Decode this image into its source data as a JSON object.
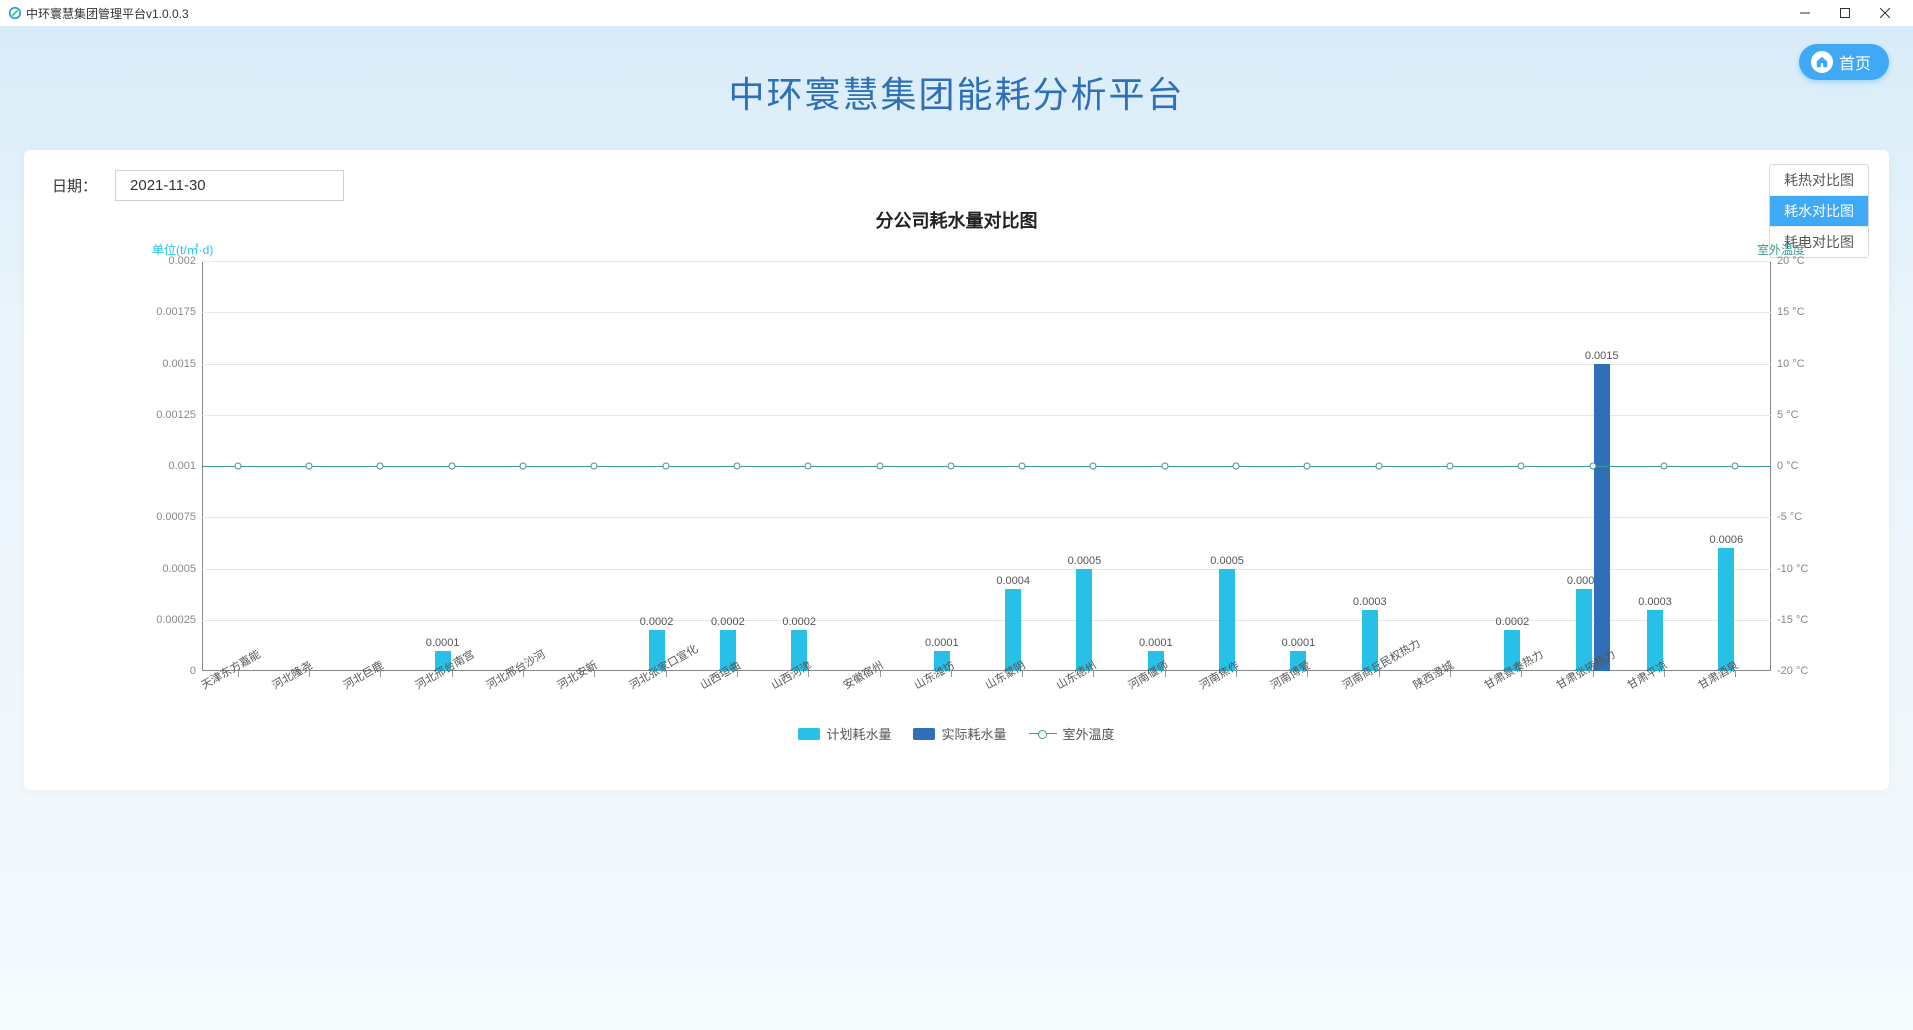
{
  "window": {
    "title": "中环寰慧集团管理平台v1.0.0.3"
  },
  "header": {
    "home_label": "首页",
    "main_title": "中环寰慧集团能耗分析平台"
  },
  "panel": {
    "date_label": "日期：",
    "date_value": "2021-11-30",
    "tabs": [
      {
        "label": "耗热对比图",
        "active": false
      },
      {
        "label": "耗水对比图",
        "active": true
      },
      {
        "label": "耗电对比图",
        "active": false
      }
    ]
  },
  "chart": {
    "title": "分公司耗水量对比图",
    "type": "bar+line",
    "y_left": {
      "label": "单位(t/㎡·d)",
      "min": 0,
      "max": 0.002,
      "ticks": [
        0,
        0.00025,
        0.0005,
        0.00075,
        0.001,
        0.00125,
        0.0015,
        0.00175,
        0.002
      ],
      "tick_labels": [
        "0",
        "0.00025",
        "0.0005",
        "0.00075",
        "0.001",
        "0.00125",
        "0.0015",
        "0.00175",
        "0.002"
      ],
      "label_color": "#29c0e7"
    },
    "y_right": {
      "label": "室外温度",
      "min": -20,
      "max": 20,
      "ticks": [
        -20,
        -15,
        -10,
        -5,
        0,
        5,
        10,
        15,
        20
      ],
      "tick_labels": [
        "-20 °C",
        "-15 °C",
        "-10 °C",
        "-5 °C",
        "0 °C",
        "5 °C",
        "10 °C",
        "15 °C",
        "20 °C"
      ],
      "label_color": "#3b9b8f"
    },
    "categories": [
      "天津东方嘉能",
      "河北隆尧",
      "河北巨鹿",
      "河北邢台南宫",
      "河北邢台沙河",
      "河北安新",
      "河北张家口宣化",
      "山西垣曲",
      "山西河津",
      "安徽宿州",
      "山东潍坊",
      "山东蒙阴",
      "山东德州",
      "河南偃师",
      "河南焦作",
      "河南博爱",
      "河南商丘民权热力",
      "陕西澄城",
      "甘肃景泰热力",
      "甘肃张掖热力",
      "甘肃平凉",
      "甘肃酒泉"
    ],
    "series_plan": {
      "name": "计划耗水量",
      "color": "#29c0e7",
      "values": [
        0,
        0,
        0,
        0.0001,
        0,
        0,
        0.0002,
        0.0002,
        0.0002,
        0,
        0.0001,
        0.0004,
        0.0005,
        0.0001,
        0.0005,
        0.0001,
        0.0003,
        0,
        0.0002,
        0.0004,
        0.0003,
        0.0006
      ],
      "labels": [
        "",
        "",
        "",
        "0.0001",
        "",
        "",
        "0.0002",
        "0.0002",
        "0.0002",
        "",
        "0.0001",
        "0.0004",
        "0.0005",
        "0.0001",
        "0.0005",
        "0.0001",
        "0.0003",
        "",
        "0.0002",
        "0.0004",
        "0.0003",
        "0.0006"
      ]
    },
    "series_actual": {
      "name": "实际耗水量",
      "color": "#2e6fb7",
      "values": [
        0,
        0,
        0,
        0,
        0,
        0,
        0,
        0,
        0,
        0,
        0,
        0,
        0,
        0,
        0,
        0,
        0,
        0,
        0,
        0.0015,
        0,
        0
      ],
      "labels": [
        "",
        "",
        "",
        "",
        "",
        "",
        "",
        "",
        "",
        "",
        "",
        "",
        "",
        "",
        "",
        "",
        "",
        "",
        "",
        "0.0015",
        "",
        ""
      ]
    },
    "series_temp": {
      "name": "室外温度",
      "color": "#3b9b8f",
      "values": [
        0,
        0,
        0,
        0,
        0,
        0,
        0,
        0,
        0,
        0,
        0,
        0,
        0,
        0,
        0,
        0,
        0,
        0,
        0,
        0,
        0,
        0
      ]
    },
    "legend": [
      {
        "label": "计划耗水量",
        "type": "swatch",
        "color": "#29c0e7"
      },
      {
        "label": "实际耗水量",
        "type": "swatch",
        "color": "#2e6fb7"
      },
      {
        "label": "室外温度",
        "type": "line",
        "color": "#3b9b8f"
      }
    ],
    "colors": {
      "grid": "#e6e6e6",
      "axis": "#888888",
      "background": "#ffffff"
    }
  }
}
